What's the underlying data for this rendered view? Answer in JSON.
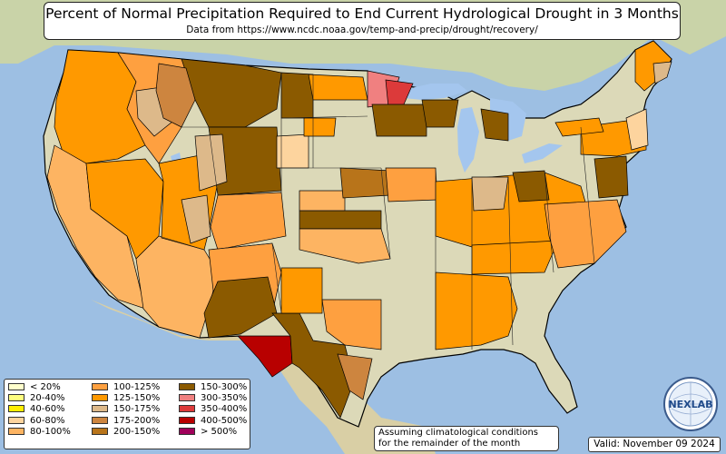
{
  "title": "Percent of Normal Precipitation Required to End Current Hydrological Drought in 3 Months",
  "subtitle": "Data from https://www.ncdc.noaa.gov/temp-and-precip/drought/recovery/",
  "note_line1": "Assuming climatological conditions",
  "note_line2": "for the remainder of the month",
  "valid": "Valid: November 09 2024",
  "logo_text": "NEXLAB",
  "colors": {
    "ocean": "#9dbfe3",
    "land_nodrought": "#dcd9b8",
    "lake": "#a4c6ee",
    "border": "#000000"
  },
  "legend": [
    {
      "label": "< 20%",
      "color": "#ffffcc"
    },
    {
      "label": "20-40%",
      "color": "#ffff80"
    },
    {
      "label": "40-60%",
      "color": "#ffee00"
    },
    {
      "label": "60-80%",
      "color": "#fdd49e"
    },
    {
      "label": "80-100%",
      "color": "#fdb462"
    },
    {
      "label": "100-125%",
      "color": "#fea040"
    },
    {
      "label": "125-150%",
      "color": "#ff9900"
    },
    {
      "label": "150-175%",
      "color": "#ddb98a"
    },
    {
      "label": "175-200%",
      "color": "#cd853f"
    },
    {
      "label": "200-150%",
      "color": "#b8741a"
    },
    {
      "label": "150-300%",
      "color": "#8b5a00"
    },
    {
      "label": "300-350%",
      "color": "#f08080"
    },
    {
      "label": "350-400%",
      "color": "#dc3a3a"
    },
    {
      "label": "400-500%",
      "color": "#b80000"
    },
    {
      "label": "> 500%",
      "color": "#a0005a"
    }
  ]
}
